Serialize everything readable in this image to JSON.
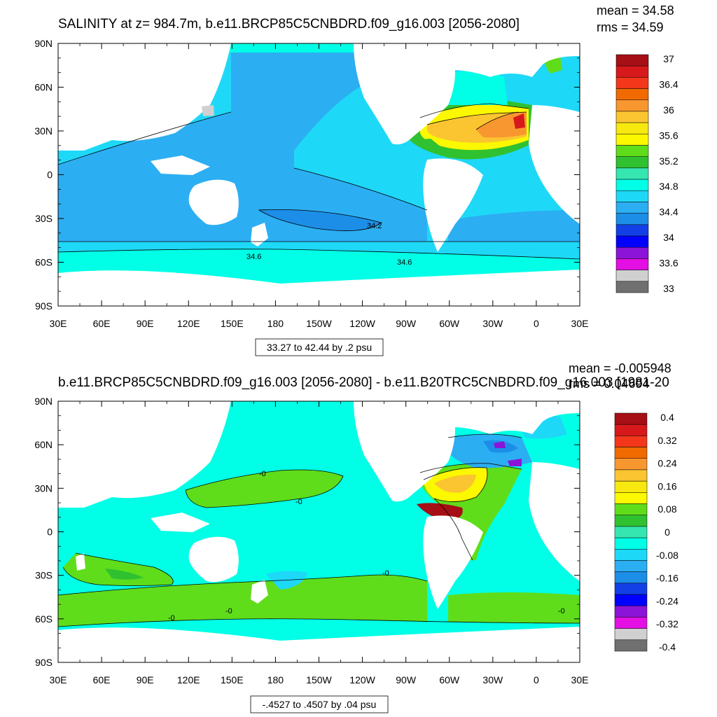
{
  "panels": [
    {
      "title": "SALINITY at z= 984.7m, b.e11.BRCP85C5CNBDRD.f09_g16.003 [2056-2080]",
      "stats": {
        "mean": "mean = 34.58",
        "rms": "rms = 34.59"
      },
      "contour_info": "33.27 to 42.44 by .2 psu",
      "contour_labels": [
        "34.2",
        "34.6",
        "34.6"
      ],
      "colorbar": {
        "labels": [
          "37",
          "36.4",
          "36",
          "35.6",
          "35.2",
          "34.8",
          "34.4",
          "34",
          "33.6",
          "33"
        ],
        "colors": [
          "#a50f15",
          "#d7191c",
          "#f4371b",
          "#f06a00",
          "#f8972f",
          "#fbc531",
          "#f7e80f",
          "#fbf800",
          "#5fdd1a",
          "#30c130",
          "#36e6b0",
          "#00ffe6",
          "#1ed8f8",
          "#2caef2",
          "#1c8ee8",
          "#1240e6",
          "#0000ff",
          "#8b14d8",
          "#e30fe3",
          "#d0d0d0",
          "#707070"
        ]
      }
    },
    {
      "title": "b.e11.BRCP85C5CNBDRD.f09_g16.003 [2056-2080] - b.e11.B20TRC5CNBDRD.f09_g16.003 [1981-20",
      "stats": {
        "mean": "mean = -0.005948",
        "rms": "rms = 0.04694"
      },
      "contour_info": "-.4527 to .4507 by .04 psu",
      "contour_labels": [
        "-0",
        "-0",
        "-0",
        "-0",
        "-0",
        "-0"
      ],
      "colorbar": {
        "labels": [
          "0.4",
          "0.32",
          "0.24",
          "0.16",
          "0.08",
          "0",
          "-0.08",
          "-0.16",
          "-0.24",
          "-0.32",
          "-0.4"
        ],
        "colors": [
          "#a50f15",
          "#d7191c",
          "#f4371b",
          "#f06a00",
          "#f8972f",
          "#fbc531",
          "#f7e80f",
          "#fbf800",
          "#5fdd1a",
          "#30c130",
          "#36e6b0",
          "#00ffe6",
          "#1ed8f8",
          "#2caef2",
          "#1c8ee8",
          "#1240e6",
          "#0000ff",
          "#8b14d8",
          "#e30fe3",
          "#d0d0d0",
          "#707070"
        ]
      }
    }
  ],
  "axes": {
    "lat_labels": [
      "90N",
      "60N",
      "30N",
      "0",
      "30S",
      "60S",
      "90S"
    ],
    "lon_labels": [
      "30E",
      "60E",
      "90E",
      "120E",
      "150E",
      "180",
      "150W",
      "120W",
      "90W",
      "60W",
      "30W",
      "0",
      "30E"
    ]
  },
  "colors": {
    "ocean_bg_top": "#1ed8f8",
    "ocean_bg_bottom": "#00ffe6",
    "land": "#ffffff"
  }
}
